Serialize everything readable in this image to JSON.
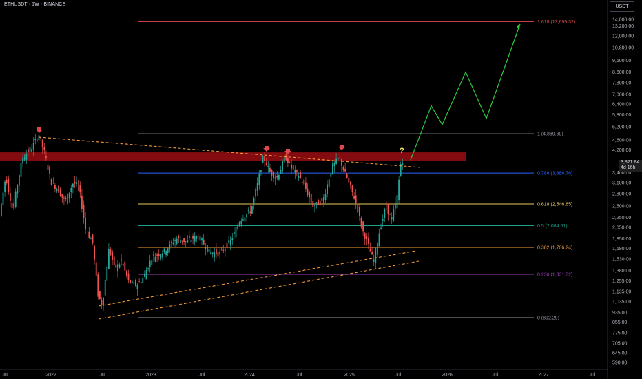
{
  "header": {
    "symbol": "ETHUSDT · 1W · BINANCE",
    "currency": "USDT"
  },
  "price_tag": {
    "price": "3,821.84",
    "countdown": "4d 16h"
  },
  "colors": {
    "background": "#000000",
    "candle_up": "#26a69a",
    "candle_down": "#ef5350",
    "resistance_zone": "#8b0d12",
    "trendline": "#f39a3a",
    "projection": "#2ecc40",
    "marker": "#e0474c",
    "question": "#f5e663"
  },
  "chart_data": {
    "type": "candlestick",
    "y_scale": "log",
    "y_ticks": [
      "14,000.00",
      "13,200.00",
      "12,000.00",
      "10,800.00",
      "9,600.00",
      "8,600.00",
      "7,800.00",
      "7,000.00",
      "6,400.00",
      "5,800.00",
      "5,200.00",
      "4,600.00",
      "4,200.00",
      "3,400.00",
      "3,100.00",
      "2,800.00",
      "2,500.00",
      "2,250.00",
      "2,050.00",
      "1,850.00",
      "1,690.00",
      "1,530.00",
      "1,380.00",
      "1,255.00",
      "1,135.00",
      "1,035.00",
      "935.00",
      "855.00",
      "775.00",
      "705.00",
      "645.00",
      "590.00"
    ],
    "x_ticks": [
      "Jul",
      "2022",
      "Jul",
      "2023",
      "Jul",
      "2024",
      "Jul",
      "2025",
      "Jul",
      "2026",
      "Jul",
      "2027",
      "Jul"
    ],
    "fib_levels": [
      {
        "label": "1.618 (13,699.32)",
        "price": 13699.32,
        "color": "#e0474c"
      },
      {
        "label": "1 (4,869.69)",
        "price": 4869.69,
        "color": "#9598a1"
      },
      {
        "label": "0.786 (3,386.76)",
        "price": 3386.76,
        "color": "#2962ff"
      },
      {
        "label": "0.618 (2,546.65)",
        "price": 2546.65,
        "color": "#e8c95a"
      },
      {
        "label": "0.5 (2,084.51)",
        "price": 2084.51,
        "color": "#1f9e8a"
      },
      {
        "label": "0.382 (1,706.24)",
        "price": 1706.24,
        "color": "#f39a3a"
      },
      {
        "label": "0.236 (1,331.32)",
        "price": 1331.32,
        "color": "#a23bbd"
      },
      {
        "label": "0 (892.29)",
        "price": 892.29,
        "color": "#9598a1"
      }
    ],
    "resistance_zone": {
      "low": 3780,
      "high": 4100
    },
    "annotations": [
      "?"
    ],
    "projection_path_prices": [
      3821.84,
      6300,
      5300,
      8600,
      5600,
      13400
    ]
  }
}
